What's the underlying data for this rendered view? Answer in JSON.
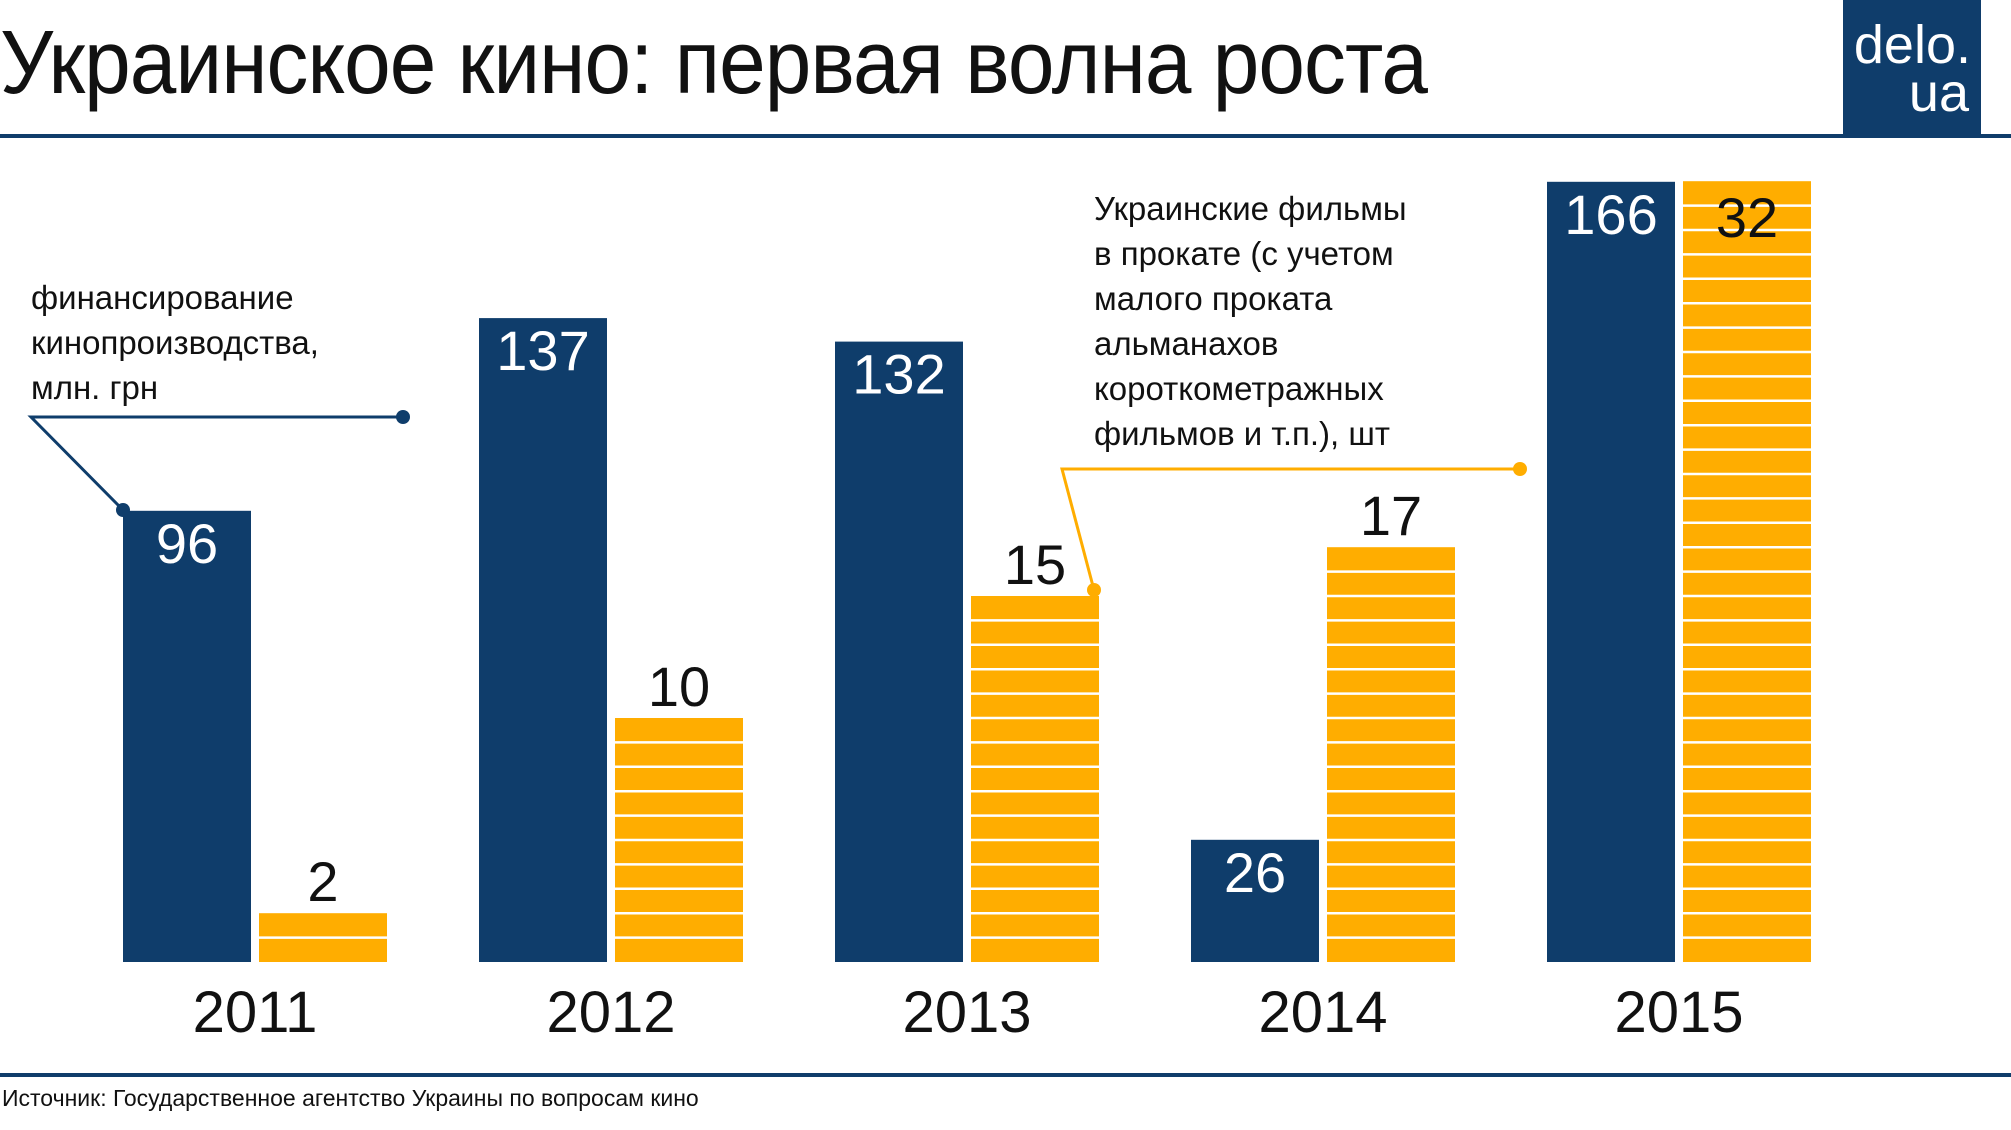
{
  "title": "Украинское кино: первая волна роста",
  "logo": {
    "line1": "delo.",
    "line2": "ua"
  },
  "source": "Источник: Государственное агентство Украины по вопросам кино",
  "colors": {
    "navy": "#0f3d6b",
    "orange": "#ffad00"
  },
  "chart_data": {
    "type": "bar",
    "categories": [
      "2011",
      "2012",
      "2013",
      "2014",
      "2015"
    ],
    "series": [
      {
        "name": "финансирование кинопроизводства, млн. грн",
        "values": [
          96,
          137,
          132,
          26,
          166
        ],
        "color": "#0f3d6b"
      },
      {
        "name": "Украинские фильмы в прокате (с учетом малого проката альманахов короткометражных фильмов и т.п.), шт",
        "values": [
          2,
          10,
          15,
          17,
          32
        ],
        "color": "#ffad00"
      }
    ],
    "annotations": {
      "funding": "финансирование\nкинопроизводства,\nмлн. грн",
      "films": "Украинские фильмы\nв прокате (с учетом\nмалого проката\nальманахов\nкороткометражных\nфильмов и т.п.), шт"
    }
  }
}
